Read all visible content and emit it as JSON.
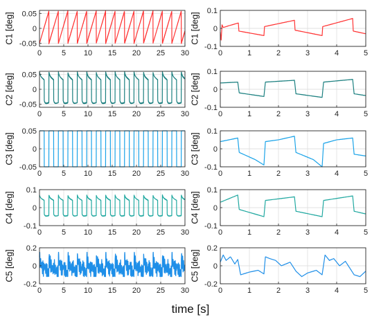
{
  "chart_data": [
    {
      "type": "line",
      "ylabel": "C1 [deg]",
      "color": "#ff3333",
      "xlim": [
        0,
        30
      ],
      "ylim": [
        -0.06,
        0.06
      ],
      "xticks": [
        0,
        5,
        10,
        15,
        20,
        25,
        30
      ],
      "yticks": [
        -0.05,
        0,
        0.05
      ],
      "yticklabels": [
        "-0.05",
        "0",
        "0.05"
      ],
      "series": [
        {
          "waveform": "sawtooth",
          "period_s": 1.95,
          "min": -0.05,
          "max": 0.058,
          "x": [
            0,
            30
          ]
        }
      ]
    },
    {
      "type": "line",
      "ylabel": "C1 [deg]",
      "color": "#ff3333",
      "xlim": [
        0,
        5
      ],
      "ylim": [
        -0.1,
        0.1
      ],
      "xticks": [
        0,
        1,
        2,
        3,
        4,
        5
      ],
      "yticks": [
        -0.1,
        0,
        0.1
      ],
      "yticklabels": [
        "-0.1",
        "0",
        "0.1"
      ],
      "series": [
        {
          "x": [
            0,
            0.03,
            0.06,
            0.1,
            0.3,
            0.62,
            0.64,
            1.5,
            1.52,
            2.55,
            2.57,
            3.5,
            3.52,
            4.55,
            4.57,
            5.0
          ],
          "y": [
            -0.02,
            -0.065,
            0.02,
            0.005,
            0.015,
            0.03,
            -0.015,
            -0.04,
            0.01,
            0.045,
            -0.01,
            -0.04,
            0.01,
            0.055,
            -0.015,
            -0.03
          ]
        }
      ]
    },
    {
      "type": "line",
      "ylabel": "C2 [deg]",
      "color": "#1a7f7f",
      "xlim": [
        0,
        30
      ],
      "ylim": [
        -0.06,
        0.06
      ],
      "xticks": [
        0,
        5,
        10,
        15,
        20,
        25,
        30
      ],
      "yticks": [
        -0.05,
        0,
        0.05
      ],
      "yticklabels": [
        "-0.05",
        "0",
        "0.05"
      ],
      "series": [
        {
          "waveform": "square-decay",
          "period_s": 1.95,
          "min": -0.05,
          "max": 0.058,
          "x": [
            0,
            30
          ]
        }
      ]
    },
    {
      "type": "line",
      "ylabel": "C2 [deg]",
      "color": "#1a7f7f",
      "xlim": [
        0,
        5
      ],
      "ylim": [
        -0.1,
        0.1
      ],
      "xticks": [
        0,
        1,
        2,
        3,
        4,
        5
      ],
      "yticks": [
        -0.1,
        0,
        0.1
      ],
      "yticklabels": [
        "-0.1",
        "0",
        "0.1"
      ],
      "series": [
        {
          "x": [
            0,
            0.6,
            0.65,
            1.5,
            1.55,
            2.55,
            2.6,
            3.5,
            3.55,
            4.55,
            4.6,
            5.0
          ],
          "y": [
            0.035,
            0.04,
            -0.02,
            -0.04,
            0.04,
            0.05,
            -0.025,
            -0.045,
            0.04,
            0.055,
            -0.025,
            -0.035
          ]
        }
      ]
    },
    {
      "type": "line",
      "ylabel": "C3 [deg]",
      "color": "#1aa3e8",
      "xlim": [
        0,
        30
      ],
      "ylim": [
        -0.05,
        0.05
      ],
      "xticks": [
        0,
        5,
        10,
        15,
        20,
        25,
        30
      ],
      "yticks": [
        -0.05,
        0,
        0.05
      ],
      "yticklabels": [
        "-0.05",
        "0",
        "0.05"
      ],
      "series": [
        {
          "waveform": "square",
          "period_s": 1.95,
          "min": -0.05,
          "max": 0.05,
          "x": [
            0,
            30
          ]
        }
      ]
    },
    {
      "type": "line",
      "ylabel": "C3 [deg]",
      "color": "#1aa3e8",
      "xlim": [
        0,
        5
      ],
      "ylim": [
        -0.1,
        0.1
      ],
      "xticks": [
        0,
        1,
        2,
        3,
        4,
        5
      ],
      "yticks": [
        -0.1,
        0,
        0.1
      ],
      "yticklabels": [
        "-0.1",
        "0",
        "0.1"
      ],
      "series": [
        {
          "x": [
            0,
            0.3,
            0.6,
            0.65,
            1.2,
            1.5,
            1.55,
            2.0,
            2.55,
            2.6,
            3.2,
            3.5,
            3.55,
            4.0,
            4.55,
            4.6,
            5.0
          ],
          "y": [
            0.04,
            0.05,
            0.06,
            -0.02,
            -0.06,
            -0.09,
            0.04,
            0.05,
            0.07,
            -0.02,
            -0.06,
            -0.1,
            0.03,
            0.05,
            0.06,
            -0.03,
            -0.04
          ]
        }
      ]
    },
    {
      "type": "line",
      "ylabel": "C4 [deg]",
      "color": "#20a8a0",
      "xlim": [
        0,
        30
      ],
      "ylim": [
        -0.1,
        0.1
      ],
      "xticks": [
        0,
        5,
        10,
        15,
        20,
        25,
        30
      ],
      "yticks": [
        -0.1,
        0,
        0.1
      ],
      "yticklabels": [
        "-0.1",
        "0",
        "0.1"
      ],
      "series": [
        {
          "waveform": "square-decay",
          "period_s": 1.95,
          "min": -0.05,
          "max": 0.07,
          "x": [
            0,
            30
          ]
        }
      ]
    },
    {
      "type": "line",
      "ylabel": "C4 [deg]",
      "color": "#20a8a0",
      "xlim": [
        0,
        5
      ],
      "ylim": [
        -0.1,
        0.1
      ],
      "xticks": [
        0,
        1,
        2,
        3,
        4,
        5
      ],
      "yticks": [
        -0.1,
        0,
        0.1
      ],
      "yticklabels": [
        "-0.1",
        "0",
        "0.1"
      ],
      "series": [
        {
          "x": [
            0,
            0.6,
            0.65,
            1.5,
            1.55,
            2.55,
            2.6,
            3.5,
            3.55,
            4.55,
            4.6,
            5.0
          ],
          "y": [
            0.03,
            0.07,
            -0.01,
            -0.05,
            0.04,
            0.06,
            -0.02,
            -0.05,
            0.04,
            0.065,
            -0.02,
            -0.035
          ]
        }
      ]
    },
    {
      "type": "line",
      "ylabel": "C5 [deg]",
      "color": "#1f8fe8",
      "xlim": [
        0,
        30
      ],
      "ylim": [
        -0.2,
        0.2
      ],
      "xticks": [
        0,
        5,
        10,
        15,
        20,
        25,
        30
      ],
      "yticks": [
        -0.2,
        0,
        0.2
      ],
      "yticklabels": [
        "-0.2",
        "0",
        "0.2"
      ],
      "series": [
        {
          "waveform": "oscillatory",
          "period_s": 1.95,
          "min": -0.12,
          "max": 0.15,
          "x": [
            0,
            30
          ]
        }
      ]
    },
    {
      "type": "line",
      "ylabel": "C5 [deg]",
      "color": "#1f8fe8",
      "xlim": [
        0,
        5
      ],
      "ylim": [
        -0.2,
        0.2
      ],
      "xticks": [
        0,
        1,
        2,
        3,
        4,
        5
      ],
      "yticks": [
        -0.2,
        0,
        0.2
      ],
      "yticklabels": [
        "-0.2",
        "0",
        "0.2"
      ],
      "series": [
        {
          "x": [
            0,
            0.1,
            0.2,
            0.35,
            0.5,
            0.6,
            0.7,
            1.0,
            1.3,
            1.5,
            1.55,
            1.7,
            1.9,
            2.1,
            2.4,
            2.6,
            2.8,
            3.0,
            3.3,
            3.5,
            3.6,
            3.75,
            3.9,
            4.1,
            4.3,
            4.6,
            4.8,
            5.0
          ],
          "y": [
            0.04,
            0.12,
            0.06,
            0.1,
            0.02,
            0.07,
            -0.1,
            -0.07,
            -0.05,
            -0.09,
            0.1,
            0.08,
            0.06,
            0.0,
            0.04,
            -0.06,
            -0.12,
            -0.08,
            -0.05,
            -0.1,
            0.12,
            0.06,
            0.08,
            0.0,
            0.05,
            -0.1,
            -0.12,
            -0.06
          ]
        }
      ]
    }
  ],
  "xlabel": "time [s]"
}
